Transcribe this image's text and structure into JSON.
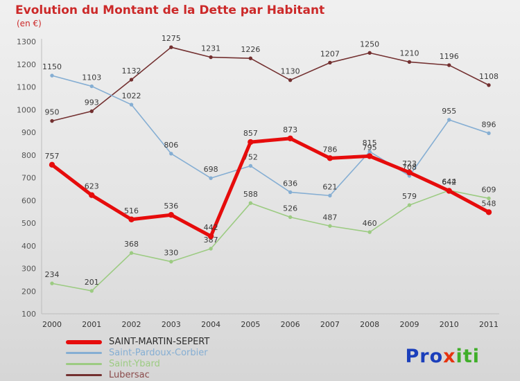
{
  "chart_data": {
    "type": "line",
    "title": "Evolution du Montant de la Dette par Habitant",
    "subtitle": "(en €)",
    "x": [
      "2000",
      "2001",
      "2002",
      "2003",
      "2004",
      "2005",
      "2006",
      "2007",
      "2008",
      "2009",
      "2010",
      "2011"
    ],
    "ylim": [
      100,
      1300
    ],
    "ytick_step": 100,
    "grid": false,
    "legend_position": "bottom-left",
    "series": [
      {
        "name": "SAINT-MARTIN-SEPERT",
        "color": "#e60c0c",
        "legend_text_color": "#2b2b2b",
        "line_width": 5,
        "values": [
          757,
          623,
          516,
          536,
          442,
          857,
          873,
          786,
          795,
          723,
          642,
          548
        ]
      },
      {
        "name": "Saint-Pardoux-Corbier",
        "color": "#85aed3",
        "legend_text_color": "#85aed3",
        "line_width": 1.6,
        "values": [
          1150,
          1103,
          1022,
          806,
          698,
          752,
          636,
          621,
          815,
          708,
          955,
          896
        ]
      },
      {
        "name": "Saint-Ybard",
        "color": "#9ccb82",
        "legend_text_color": "#9ccb82",
        "line_width": 1.6,
        "values": [
          234,
          201,
          368,
          330,
          387,
          588,
          526,
          487,
          460,
          579,
          644,
          609
        ]
      },
      {
        "name": "Lubersac",
        "color": "#733030",
        "legend_text_color": "#8a4a4a",
        "line_width": 1.6,
        "values": [
          950,
          993,
          1132,
          1275,
          1231,
          1226,
          1130,
          1207,
          1250,
          1210,
          1196,
          1108
        ]
      }
    ]
  },
  "axis_text_color": "#555555",
  "label_text_color": "#3a3a3a",
  "logo": {
    "letters": [
      {
        "ch": "P",
        "color": "#1b3fbb"
      },
      {
        "ch": "r",
        "color": "#1b3fbb"
      },
      {
        "ch": "o",
        "color": "#1b3fbb"
      },
      {
        "ch": "x",
        "color": "#e6330f"
      },
      {
        "ch": "i",
        "color": "#3fae29"
      },
      {
        "ch": "t",
        "color": "#3fae29"
      },
      {
        "ch": "i",
        "color": "#3fae29"
      }
    ]
  }
}
